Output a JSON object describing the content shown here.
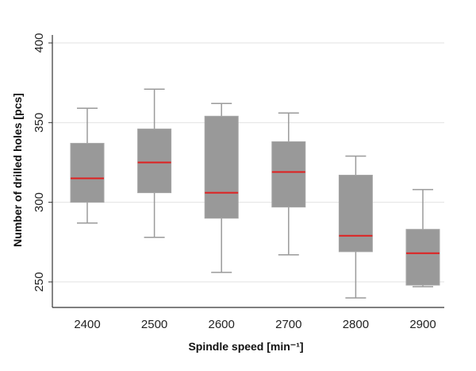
{
  "chart_data": {
    "type": "box",
    "title": "",
    "xlabel": "Spindle speed [min⁻¹]",
    "ylabel": "Number of drilled holes [pcs]",
    "ylim": [
      234,
      405
    ],
    "yticks": [
      250,
      300,
      350,
      400
    ],
    "grid": true,
    "categories": [
      "2400",
      "2500",
      "2600",
      "2700",
      "2800",
      "2900"
    ],
    "boxes": [
      {
        "category": "2400",
        "min": 287,
        "q1": 300,
        "median": 315,
        "q3": 337,
        "max": 359
      },
      {
        "category": "2500",
        "min": 278,
        "q1": 306,
        "median": 325,
        "q3": 346,
        "max": 371
      },
      {
        "category": "2600",
        "min": 256,
        "q1": 290,
        "median": 306,
        "q3": 354,
        "max": 362
      },
      {
        "category": "2700",
        "min": 267,
        "q1": 297,
        "median": 319,
        "q3": 338,
        "max": 356
      },
      {
        "category": "2800",
        "min": 240,
        "q1": 269,
        "median": 279,
        "q3": 317,
        "max": 329
      },
      {
        "category": "2900",
        "min": 247,
        "q1": 248,
        "median": 268,
        "q3": 283,
        "max": 308
      }
    ],
    "colors": {
      "box": "#999999",
      "median": "#e02020",
      "whisker": "#9a9a9a",
      "grid": "#e2e2e2",
      "axis": "#333333"
    }
  }
}
